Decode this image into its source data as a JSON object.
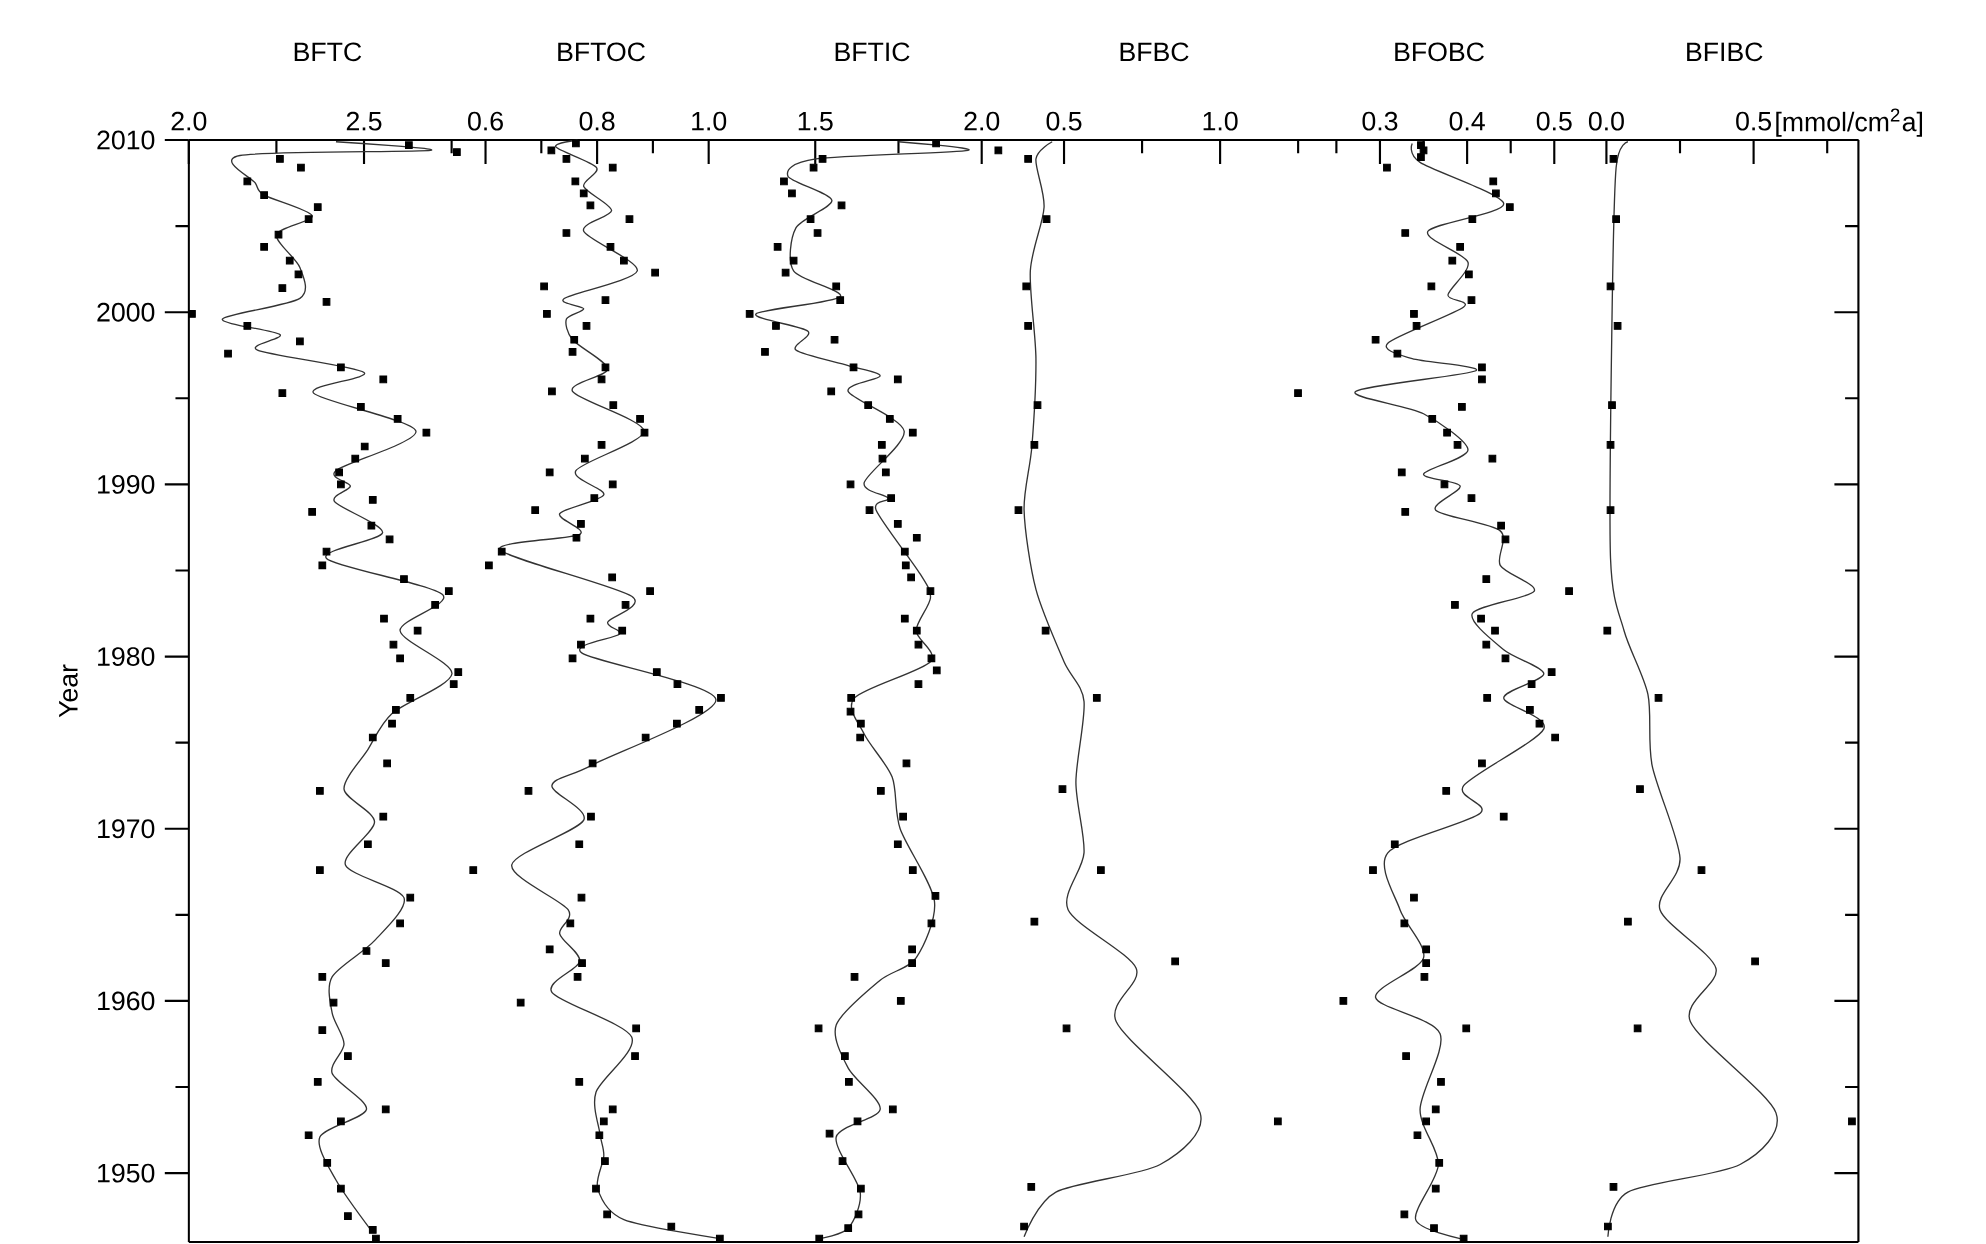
{
  "chart_data": [
    {
      "type": "scatter",
      "title": "BFTC",
      "ylabel": "Year",
      "xlim": [
        2.0,
        2.791
      ],
      "ylim": [
        1946,
        2010
      ],
      "marker": "square",
      "line_style": "solid",
      "xticks": [
        {
          "value": 2,
          "label": "2.0"
        },
        {
          "value": 2.25,
          "label": null
        },
        2.5,
        {
          "value": 2.75,
          "label": null
        }
      ],
      "yticks": [
        1950,
        {
          "value": 1955,
          "label": null
        },
        1960,
        {
          "value": 1965,
          "label": null
        },
        1970,
        {
          "value": 1975,
          "label": null
        },
        1980,
        {
          "value": 1985,
          "label": null
        },
        1990,
        {
          "value": 1995,
          "label": null
        },
        2000,
        {
          "value": 2005,
          "label": null
        },
        2010
      ],
      "series": [
        {
          "type": "scatter",
          "color": "#000000",
          "x": [
            2.628,
            2.765,
            2.26,
            2.32,
            2.167,
            2.215,
            2.368,
            2.342,
            2.256,
            2.215,
            2.288,
            2.313,
            2.267,
            2.393,
            2.009,
            2.167,
            2.317,
            2.112,
            2.434,
            2.555,
            2.267,
            2.491,
            2.596,
            2.678,
            2.502,
            2.475,
            2.429,
            2.434,
            2.525,
            2.352,
            2.521,
            2.573,
            2.393,
            2.381,
            2.614,
            2.742,
            2.703,
            2.557,
            2.653,
            2.584,
            2.603,
            2.769,
            2.756,
            2.632,
            2.591,
            2.58,
            2.525,
            2.566,
            2.374,
            2.555,
            2.511,
            2.374,
            2.632,
            2.603,
            2.507,
            2.562,
            2.381,
            2.413,
            2.381,
            2.454,
            2.368,
            2.562,
            2.434,
            2.342,
            2.395,
            2.434,
            2.454,
            2.525,
            2.534
          ],
          "values": [
            2009.7,
            2009.3,
            2008.9,
            2008.4,
            2007.6,
            2006.8,
            2006.1,
            2005.4,
            2004.5,
            2003.8,
            2003.0,
            2002.2,
            2001.4,
            2000.6,
            1999.9,
            1999.2,
            1998.3,
            1997.6,
            1996.8,
            1996.1,
            1995.3,
            1994.5,
            1993.8,
            1993.0,
            1992.2,
            1991.5,
            1990.7,
            1990.0,
            1989.1,
            1988.4,
            1987.6,
            1986.8,
            1986.1,
            1985.3,
            1984.5,
            1983.8,
            1983.0,
            1982.2,
            1981.5,
            1980.7,
            1979.9,
            1979.1,
            1978.4,
            1977.6,
            1976.9,
            1976.1,
            1975.3,
            1973.8,
            1972.2,
            1970.7,
            1969.1,
            1967.6,
            1966.0,
            1964.5,
            1962.9,
            1962.2,
            1961.4,
            1959.9,
            1958.3,
            1956.8,
            1955.3,
            1953.7,
            1953.0,
            1952.2,
            1950.6,
            1949.1,
            1947.5,
            1946.7,
            1946.2
          ]
        },
        {
          "type": "line",
          "marker": "none",
          "color": "#333333",
          "x": [
            2.42,
            2.69,
            2.146,
            2.19,
            2.215,
            2.352,
            2.25,
            2.317,
            2.317,
            2.096,
            2.26,
            2.196,
            2.5,
            2.356,
            2.648,
            2.42,
            2.461,
            2.416,
            2.553,
            2.393,
            2.724,
            2.603,
            2.751,
            2.58,
            2.511,
            2.443,
            2.53,
            2.447,
            2.614,
            2.53,
            2.409,
            2.409,
            2.443,
            2.409,
            2.507,
            2.374,
            2.42,
            2.523
          ],
          "values": [
            2009.9,
            2009.4,
            2009.1,
            2007.5,
            2006.8,
            2005.6,
            2004.5,
            2002.6,
            2000.8,
            1999.6,
            1998.7,
            1997.8,
            1996.5,
            1995.3,
            1993.1,
            1990.8,
            1989.9,
            1989.0,
            1987.2,
            1985.7,
            1983.6,
            1981.5,
            1979.0,
            1976.7,
            1974.6,
            1972.3,
            1970.4,
            1967.9,
            1966.0,
            1963.5,
            1961.4,
            1959.3,
            1957.5,
            1955.8,
            1953.7,
            1952.1,
            1949.6,
            1946.6
          ]
        }
      ]
    },
    {
      "type": "scatter",
      "title": "BFTOC",
      "xlim": [
        0.565,
        1.049
      ],
      "ylim": [
        1946,
        2010
      ],
      "tick_labels": "x",
      "marker": "square",
      "line_style": "solid",
      "xticks": [
        0.6,
        {
          "value": 0.7,
          "label": null
        },
        0.8,
        {
          "value": 0.9,
          "label": null
        },
        {
          "value": 1,
          "label": "1.0"
        }
      ],
      "series": [
        {
          "type": "scatter",
          "color": "#000000",
          "x": [
            0.762,
            0.718,
            0.745,
            0.828,
            0.761,
            0.776,
            0.788,
            0.858,
            0.745,
            0.824,
            0.848,
            0.904,
            0.705,
            0.815,
            0.71,
            0.781,
            0.759,
            0.756,
            0.815,
            0.808,
            0.719,
            0.829,
            0.877,
            0.885,
            0.808,
            0.778,
            0.715,
            0.828,
            0.795,
            0.689,
            0.771,
            0.763,
            0.629,
            0.606,
            0.827,
            0.895,
            0.851,
            0.788,
            0.845,
            0.771,
            0.756,
            0.907,
            0.944,
            1.022,
            0.983,
            0.943,
            0.887,
            0.792,
            0.677,
            0.789,
            0.768,
            0.578,
            0.772,
            0.752,
            0.715,
            0.773,
            0.765,
            0.663,
            0.87,
            0.868,
            0.768,
            0.828,
            0.812,
            0.804,
            0.814,
            0.798,
            0.818,
            0.933,
            1.02
          ],
          "values": [
            2009.8,
            2009.4,
            2008.9,
            2008.4,
            2007.6,
            2006.9,
            2006.2,
            2005.4,
            2004.6,
            2003.8,
            2003.0,
            2002.3,
            2001.5,
            2000.7,
            1999.9,
            1999.2,
            1998.4,
            1997.7,
            1996.8,
            1996.1,
            1995.4,
            1994.6,
            1993.8,
            1993.0,
            1992.3,
            1991.5,
            1990.7,
            1990.0,
            1989.2,
            1988.5,
            1987.7,
            1986.9,
            1986.1,
            1985.3,
            1984.6,
            1983.8,
            1983.0,
            1982.2,
            1981.5,
            1980.7,
            1979.9,
            1979.1,
            1978.4,
            1977.6,
            1976.9,
            1976.1,
            1975.3,
            1973.8,
            1972.2,
            1970.7,
            1969.1,
            1967.6,
            1966.0,
            1964.5,
            1963.0,
            1962.2,
            1961.4,
            1959.9,
            1958.4,
            1956.8,
            1955.3,
            1953.7,
            1953.0,
            1952.2,
            1950.7,
            1949.1,
            1947.6,
            1946.9,
            1946.2
          ]
        },
        {
          "type": "line",
          "marker": "none",
          "color": "#333333",
          "x": [
            0.765,
            0.726,
            0.799,
            0.776,
            0.826,
            0.776,
            0.872,
            0.741,
            0.776,
            0.745,
            0.756,
            0.819,
            0.756,
            0.884,
            0.762,
            0.812,
            0.733,
            0.769,
            0.626,
            0.862,
            0.819,
            0.84,
            0.773,
            1.013,
            0.791,
            0.719,
            0.776,
            0.647,
            0.748,
            0.733,
            0.769,
            0.719,
            0.862,
            0.798,
            0.805,
            0.812,
            0.801,
            0.848,
            1.02
          ],
          "values": [
            2010.0,
            2009.6,
            2008.4,
            2007.3,
            2005.9,
            2004.7,
            2002.4,
            2000.8,
            2000.2,
            1999.6,
            1998.4,
            1996.7,
            1995.4,
            1993.1,
            1990.8,
            1989.4,
            1988.3,
            1987.1,
            1986.2,
            1983.5,
            1982.0,
            1981.3,
            1980.2,
            1977.5,
            1973.7,
            1972.5,
            1970.5,
            1967.9,
            1965.3,
            1963.9,
            1962.3,
            1960.5,
            1957.9,
            1954.7,
            1952.3,
            1951.0,
            1949.1,
            1947.3,
            1946.2
          ]
        }
      ]
    },
    {
      "type": "scatter",
      "title": "BFTIC",
      "xlim": [
        1.262,
        2.079
      ],
      "ylim": [
        1946,
        2010
      ],
      "tick_labels": "x",
      "marker": "square",
      "line_style": "solid",
      "xticks": [
        1.5,
        {
          "value": 1.75,
          "label": null
        },
        {
          "value": 2,
          "label": "2.0"
        }
      ],
      "series": [
        {
          "type": "scatter",
          "color": "#000000",
          "x": [
            1.863,
            2.05,
            1.522,
            1.495,
            1.406,
            1.43,
            1.579,
            1.486,
            1.507,
            1.387,
            1.435,
            1.411,
            1.563,
            1.575,
            1.303,
            1.382,
            1.558,
            1.349,
            1.615,
            1.748,
            1.548,
            1.659,
            1.724,
            1.793,
            1.7,
            1.702,
            1.712,
            1.606,
            1.728,
            1.663,
            1.748,
            1.805,
            1.769,
            1.772,
            1.788,
            1.846,
            1.769,
            1.805,
            1.81,
            1.849,
            1.865,
            1.81,
            1.608,
            1.606,
            1.637,
            1.635,
            1.774,
            1.697,
            1.764,
            1.748,
            1.793,
            1.861,
            1.849,
            1.791,
            1.791,
            1.618,
            1.757,
            1.51,
            1.589,
            1.601,
            1.733,
            1.627,
            1.543,
            1.582,
            1.637,
            1.63,
            1.599,
            1.512
          ],
          "values": [
            2009.8,
            2009.4,
            2008.9,
            2008.4,
            2007.6,
            2006.9,
            2006.2,
            2005.4,
            2004.6,
            2003.8,
            2003.0,
            2002.3,
            2001.5,
            2000.7,
            1999.9,
            1999.2,
            1998.4,
            1997.7,
            1996.8,
            1996.1,
            1995.4,
            1994.6,
            1993.8,
            1993.0,
            1992.3,
            1991.5,
            1990.7,
            1990.0,
            1989.2,
            1988.5,
            1987.7,
            1986.9,
            1986.1,
            1985.3,
            1984.6,
            1983.8,
            1982.2,
            1981.5,
            1980.7,
            1979.9,
            1979.2,
            1978.4,
            1977.6,
            1976.8,
            1976.1,
            1975.3,
            1973.8,
            1972.2,
            1970.7,
            1969.1,
            1967.6,
            1966.1,
            1964.5,
            1963.0,
            1962.2,
            1961.4,
            1960.0,
            1958.4,
            1956.8,
            1955.3,
            1953.7,
            1953.0,
            1952.3,
            1950.7,
            1949.1,
            1947.6,
            1946.8,
            1946.2
          ]
        },
        {
          "type": "line",
          "marker": "none",
          "color": "#333333",
          "x": [
            1.75,
            1.959,
            1.502,
            1.418,
            1.55,
            1.442,
            1.435,
            1.575,
            1.322,
            1.478,
            1.442,
            1.599,
            1.695,
            1.599,
            1.767,
            1.647,
            1.719,
            1.683,
            1.815,
            1.846,
            1.803,
            1.846,
            1.618,
            1.647,
            1.731,
            1.755,
            1.858,
            1.803,
            1.695,
            1.563,
            1.599,
            1.695,
            1.563,
            1.635,
            1.599,
            1.514
          ],
          "values": [
            2009.9,
            2009.4,
            2008.9,
            2007.9,
            2006.5,
            2004.9,
            2002.4,
            2000.9,
            1999.9,
            1998.9,
            1997.8,
            1996.9,
            1996.3,
            1995.4,
            1993.1,
            1990.1,
            1989.2,
            1988.5,
            1984.8,
            1983.4,
            1981.5,
            1979.7,
            1977.6,
            1975.5,
            1973.0,
            1970.0,
            1965.8,
            1962.5,
            1961.2,
            1958.6,
            1956.1,
            1953.7,
            1952.1,
            1948.9,
            1946.8,
            1946.2
          ]
        }
      ]
    },
    {
      "type": "scatter",
      "title": "BFBC",
      "xlim": [
        0.3205,
        1.256
      ],
      "ylim": [
        1946,
        2010
      ],
      "tick_labels": "x",
      "marker": "square",
      "line_style": "solid",
      "xticks": [
        0.5,
        {
          "value": 0.75,
          "label": null
        },
        {
          "value": 1,
          "label": "1.0"
        },
        {
          "value": 1.25,
          "label": null
        }
      ],
      "series": [
        {
          "type": "scatter",
          "color": "#000000",
          "x": [
            0.385,
            0.444,
            0.379,
            0.385,
            0.415,
            0.405,
            0.354,
            0.441,
            0.605,
            0.495,
            0.618,
            0.405,
            0.856,
            0.508,
            1.185,
            0.395,
            0.372
          ],
          "values": [
            2008.9,
            2005.4,
            2001.5,
            1999.2,
            1994.6,
            1992.3,
            1988.5,
            1981.5,
            1977.6,
            1972.3,
            1967.6,
            1964.6,
            1962.3,
            1958.4,
            1953.0,
            1949.2,
            1946.9
          ]
        },
        {
          "type": "line",
          "marker": "none",
          "color": "#333333",
          "x": [
            0.462,
            0.41,
            0.436,
            0.392,
            0.41,
            0.397,
            0.372,
            0.41,
            0.5,
            0.564,
            0.538,
            0.564,
            0.513,
            0.731,
            0.667,
            0.936,
            0.808,
            0.474,
            0.372
          ],
          "values": [
            2009.9,
            2008.9,
            2006.1,
            2002.4,
            1997.3,
            1992.2,
            1988.5,
            1983.9,
            1979.7,
            1977.4,
            1972.7,
            1968.6,
            1965.3,
            1961.9,
            1958.8,
            1953.5,
            1950.5,
            1948.9,
            1946.3
          ]
        }
      ]
    },
    {
      "type": "scatter",
      "title": "BFOBC",
      "xlim": [
        0.1945,
        0.541
      ],
      "ylim": [
        1946,
        2010
      ],
      "tick_labels": "x",
      "marker": "square",
      "line_style": "solid",
      "xticks": [
        {
          "value": 0.25,
          "label": null
        },
        0.3,
        {
          "value": 0.35,
          "label": null
        },
        0.4,
        {
          "value": 0.45,
          "label": null
        },
        0.5
      ],
      "series": [
        {
          "type": "scatter",
          "color": "#000000",
          "x": [
            0.347,
            0.35,
            0.347,
            0.308,
            0.43,
            0.433,
            0.449,
            0.406,
            0.329,
            0.392,
            0.383,
            0.402,
            0.359,
            0.405,
            0.339,
            0.342,
            0.295,
            0.32,
            0.417,
            0.417,
            0.206,
            0.394,
            0.36,
            0.377,
            0.389,
            0.429,
            0.325,
            0.374,
            0.405,
            0.329,
            0.439,
            0.444,
            0.422,
            0.517,
            0.386,
            0.416,
            0.432,
            0.422,
            0.444,
            0.497,
            0.474,
            0.423,
            0.472,
            0.483,
            0.501,
            0.417,
            0.376,
            0.442,
            0.317,
            0.292,
            0.339,
            0.328,
            0.353,
            0.353,
            0.351,
            0.258,
            0.399,
            0.33,
            0.37,
            0.364,
            0.353,
            0.343,
            0.368,
            0.364,
            0.328,
            0.362,
            0.396
          ],
          "values": [
            2009.7,
            2009.4,
            2009.0,
            2008.4,
            2007.6,
            2006.9,
            2006.1,
            2005.4,
            2004.6,
            2003.8,
            2003.0,
            2002.2,
            2001.5,
            2000.7,
            1999.9,
            1999.2,
            1998.4,
            1997.6,
            1996.8,
            1996.1,
            1995.3,
            1994.5,
            1993.8,
            1993.0,
            1992.3,
            1991.5,
            1990.7,
            1990.0,
            1989.2,
            1988.4,
            1987.6,
            1986.8,
            1984.5,
            1983.8,
            1983.0,
            1982.2,
            1981.5,
            1980.7,
            1979.9,
            1979.1,
            1978.4,
            1977.6,
            1976.9,
            1976.1,
            1975.3,
            1973.8,
            1972.2,
            1970.7,
            1969.1,
            1967.6,
            1966.0,
            1964.5,
            1963.0,
            1962.2,
            1961.4,
            1960.0,
            1958.4,
            1956.8,
            1955.3,
            1953.7,
            1953.0,
            1952.2,
            1950.6,
            1949.1,
            1947.6,
            1946.8,
            1946.2
          ]
        },
        {
          "type": "line",
          "marker": "none",
          "color": "#333333",
          "x": [
            0.337,
            0.346,
            0.442,
            0.355,
            0.401,
            0.378,
            0.396,
            0.309,
            0.337,
            0.41,
            0.272,
            0.35,
            0.401,
            0.35,
            0.392,
            0.364,
            0.438,
            0.438,
            0.477,
            0.406,
            0.442,
            0.488,
            0.442,
            0.488,
            0.396,
            0.415,
            0.309,
            0.323,
            0.35,
            0.295,
            0.369,
            0.346,
            0.367,
            0.341,
            0.392
          ],
          "values": [
            2009.8,
            2008.7,
            2006.3,
            2004.7,
            2002.9,
            2001.0,
            2000.3,
            1998.2,
            1997.3,
            1996.6,
            1995.4,
            1994.1,
            1992.0,
            1990.6,
            1989.9,
            1988.5,
            1987.3,
            1985.3,
            1983.8,
            1982.5,
            1980.4,
            1979.0,
            1977.6,
            1975.8,
            1972.5,
            1970.9,
            1968.6,
            1965.3,
            1962.5,
            1960.2,
            1958.1,
            1953.7,
            1950.5,
            1947.3,
            1946.2
          ]
        }
      ]
    },
    {
      "type": "scatter",
      "title": "BFIBC",
      "xlabel": "[mmol/cm$^{2}$a]",
      "xlim": [
        -0.0557,
        0.856
      ],
      "ylim": [
        1946,
        2010
      ],
      "tick_labels": "x",
      "marker": "square",
      "line_style": "solid",
      "xticks": [
        {
          "value": 0,
          "label": "0.0"
        },
        {
          "value": 0.25,
          "label": null
        },
        0.5,
        {
          "value": 0.75,
          "label": null
        }
      ],
      "yticks": [
        1950,
        {
          "value": 1955,
          "label": null
        },
        1960,
        {
          "value": 1965,
          "label": null
        },
        1970,
        {
          "value": 1975,
          "label": null
        },
        1980,
        {
          "value": 1985,
          "label": null
        },
        1990,
        {
          "value": 1995,
          "label": null
        },
        2000,
        {
          "value": 2005,
          "label": null
        },
        2010
      ],
      "series": [
        {
          "type": "scatter",
          "color": "#000000",
          "x": [
            0.024,
            0.033,
            0.014,
            0.038,
            0.019,
            0.014,
            0.014,
            0.003,
            0.177,
            0.114,
            0.323,
            0.073,
            0.505,
            0.106,
            0.834,
            0.024,
            0.005
          ],
          "values": [
            2008.9,
            2005.4,
            2001.5,
            1999.2,
            1994.6,
            1992.3,
            1988.5,
            1981.5,
            1977.6,
            1972.3,
            1967.6,
            1964.6,
            1962.3,
            1958.4,
            1953.0,
            1949.2,
            1946.9
          ]
        },
        {
          "type": "line",
          "marker": "none",
          "color": "#333333",
          "x": [
            0.073,
            0.033,
            0.019,
            0.014,
            0.06,
            0.141,
            0.155,
            0.25,
            0.182,
            0.372,
            0.285,
            0.576,
            0.454,
            0.073,
            0.005
          ],
          "values": [
            2009.9,
            2008.4,
            1999.6,
            1985.7,
            1981.5,
            1977.8,
            1973.7,
            1968.3,
            1965.3,
            1961.9,
            1958.8,
            1953.5,
            1950.5,
            1948.9,
            1946.3
          ]
        }
      ]
    }
  ]
}
